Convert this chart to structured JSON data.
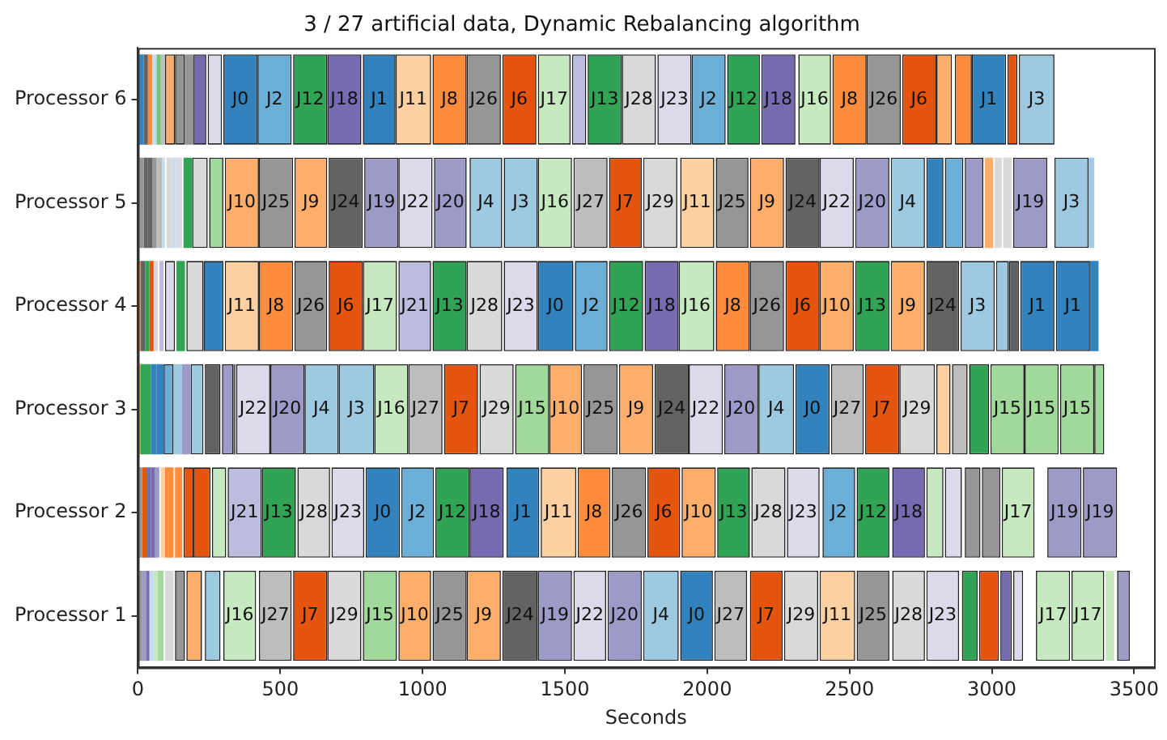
{
  "chart_data": {
    "type": "bar",
    "orientation": "horizontal",
    "title": "3 / 27 artificial data, Dynamic Rebalancing algorithm",
    "xlabel": "Seconds",
    "categories": [
      "Processor 6",
      "Processor 5",
      "Processor 4",
      "Processor 3",
      "Processor 2",
      "Processor 1"
    ],
    "xlim": [
      0,
      3570
    ],
    "xticks": [
      0,
      500,
      1000,
      1500,
      2000,
      2500,
      3000,
      3500
    ],
    "grid": false,
    "legend": false,
    "series": [
      {
        "base": [
          5,
          5,
          5,
          5,
          5,
          5
        ],
        "values": [
          15,
          15,
          5,
          5,
          10,
          10
        ],
        "colors": [
          "#3182bd",
          "#969696",
          "#fd8d3c",
          "#fd8d3c",
          "#969696",
          "#969696"
        ]
      },
      {
        "base": [
          20,
          20,
          10,
          10,
          15,
          15
        ],
        "values": [
          15,
          15,
          15,
          20,
          15,
          15
        ],
        "colors": [
          "#636363",
          "#636363",
          "#636363",
          "#31a354",
          "#e6550d",
          "#9e9ac8"
        ]
      },
      {
        "base": [
          35,
          35,
          25,
          30,
          30,
          30
        ],
        "values": [
          15,
          15,
          15,
          15,
          15,
          10
        ],
        "colors": [
          "#fd8d3c",
          "#636363",
          "#31a354",
          "#31a354",
          "#756bb1",
          "#756bb1"
        ]
      },
      {
        "base": [
          50,
          50,
          40,
          45,
          45,
          40
        ],
        "values": [
          15,
          15,
          15,
          20,
          15,
          15
        ],
        "colors": [
          "#c6dbef",
          "#969696",
          "#e6550d",
          "#3182bd",
          "#756bb1",
          "#c6dbef"
        ]
      },
      {
        "base": [
          65,
          65,
          55,
          65,
          60,
          55
        ],
        "values": [
          15,
          20,
          15,
          25,
          15,
          15
        ],
        "colors": [
          "#74c476",
          "#bdbdbd",
          "#d9d9d9",
          "#3182bd",
          "#9e9ac8",
          "#c7e9c0"
        ]
      },
      {
        "base": [
          80,
          85,
          75,
          90,
          80,
          70
        ],
        "values": [
          15,
          10,
          15,
          35,
          15,
          20
        ],
        "colors": [
          "#bdbdbd",
          "#c6dbef",
          "#bcbddc",
          "#6baed6",
          "#fdd0a2",
          "#a1d99b"
        ]
      },
      {
        "base": [
          95,
          100,
          95,
          125,
          95,
          95
        ],
        "values": [
          35,
          20,
          35,
          30,
          30,
          30
        ],
        "colors": [
          "#fdae6b",
          "#d9d9d9",
          "#dadaeb",
          "#9ecae1",
          "#fd8d3c",
          "#d9d9d9"
        ]
      },
      {
        "base": [
          130,
          120,
          135,
          155,
          130,
          130
        ],
        "values": [
          35,
          10,
          30,
          30,
          25,
          35
        ],
        "colors": [
          "#969696",
          "#c6dbef",
          "#31a354",
          "#9e9ac8",
          "#fd8d3c",
          "#969696"
        ]
      },
      {
        "base": [
          165,
          130,
          170,
          185,
          160,
          170
        ],
        "values": [
          30,
          25,
          60,
          45,
          35,
          55
        ],
        "colors": [
          "#969696",
          "#dadaeb",
          "#d9d9d9",
          "#9ecae1",
          "#e6550d",
          "#fdae6b"
        ]
      },
      {
        "base": [
          195,
          160,
          230,
          235,
          195,
          235
        ],
        "values": [
          45,
          30,
          70,
          55,
          60,
          55
        ],
        "colors": [
          "#756bb1",
          "#31a354",
          "#3182bd",
          "#636363",
          "#e6550d",
          "#9ecae1"
        ]
      },
      {
        "base": [
          245,
          190,
          305,
          295,
          260,
          300
        ],
        "values": [
          50,
          55,
          120,
          40,
          50,
          115
        ],
        "colors": [
          "#dadaeb",
          "#d9d9d9",
          "#fdd0a2",
          "#9e9ac8",
          "#c7e9c0",
          "#c7e9c0"
        ],
        "value_labels": [
          null,
          null,
          "J11",
          null,
          null,
          "J16"
        ]
      },
      {
        "base": [
          300,
          250,
          425,
          335,
          315,
          425
        ],
        "values": [
          120,
          50,
          120,
          8,
          120,
          115
        ],
        "colors": [
          "#3182bd",
          "#a1d99b",
          "#fd8d3c",
          "#636363",
          "#bcbddc",
          "#bdbdbd"
        ],
        "value_labels": [
          "J0",
          null,
          "J8",
          null,
          "J21",
          "J27"
        ]
      },
      {
        "base": [
          420,
          305,
          550,
          345,
          435,
          545
        ],
        "values": [
          120,
          120,
          115,
          120,
          120,
          120
        ],
        "colors": [
          "#6baed6",
          "#fdae6b",
          "#969696",
          "#dadaeb",
          "#31a354",
          "#e6550d"
        ],
        "value_labels": [
          "J2",
          "J10",
          "J26",
          "J22",
          "J13",
          "J7"
        ]
      },
      {
        "base": [
          545,
          425,
          670,
          465,
          560,
          665
        ],
        "values": [
          120,
          120,
          120,
          120,
          115,
          120
        ],
        "colors": [
          "#31a354",
          "#969696",
          "#e6550d",
          "#9e9ac8",
          "#d9d9d9",
          "#d9d9d9"
        ],
        "value_labels": [
          "J12",
          "J25",
          "J6",
          "J20",
          "J28",
          "J29"
        ]
      },
      {
        "base": [
          665,
          550,
          790,
          585,
          680,
          790
        ],
        "values": [
          120,
          115,
          120,
          120,
          115,
          120
        ],
        "colors": [
          "#756bb1",
          "#fdae6b",
          "#c7e9c0",
          "#9ecae1",
          "#dadaeb",
          "#a1d99b"
        ],
        "value_labels": [
          "J18",
          "J9",
          "J17",
          "J4",
          "J23",
          "J15"
        ]
      },
      {
        "base": [
          790,
          670,
          915,
          705,
          800,
          915
        ],
        "values": [
          115,
          120,
          115,
          125,
          120,
          115
        ],
        "colors": [
          "#3182bd",
          "#636363",
          "#bcbddc",
          "#9ecae1",
          "#3182bd",
          "#fdae6b"
        ],
        "value_labels": [
          "J1",
          "J24",
          "J21",
          "J3",
          "J0",
          "J10"
        ]
      },
      {
        "base": [
          905,
          795,
          1035,
          830,
          925,
          1035
        ],
        "values": [
          125,
          120,
          120,
          120,
          115,
          120
        ],
        "colors": [
          "#fdd0a2",
          "#9e9ac8",
          "#31a354",
          "#c7e9c0",
          "#6baed6",
          "#969696"
        ],
        "value_labels": [
          "J11",
          "J19",
          "J13",
          "J16",
          "J2",
          "J25"
        ]
      },
      {
        "base": [
          1035,
          915,
          1155,
          950,
          1045,
          1155
        ],
        "values": [
          120,
          120,
          125,
          120,
          120,
          120
        ],
        "colors": [
          "#fd8d3c",
          "#dadaeb",
          "#d9d9d9",
          "#bdbdbd",
          "#31a354",
          "#fdae6b"
        ],
        "value_labels": [
          "J8",
          "J22",
          "J28",
          "J27",
          "J12",
          "J9"
        ]
      },
      {
        "base": [
          1155,
          1040,
          1285,
          1075,
          1165,
          1280
        ],
        "values": [
          120,
          115,
          120,
          120,
          120,
          125
        ],
        "colors": [
          "#969696",
          "#9e9ac8",
          "#dadaeb",
          "#e6550d",
          "#756bb1",
          "#636363"
        ],
        "value_labels": [
          "J26",
          "J20",
          "J23",
          "J7",
          "J18",
          "J24"
        ]
      },
      {
        "base": [
          1280,
          1165,
          1405,
          1200,
          1295,
          1405
        ],
        "values": [
          120,
          115,
          125,
          120,
          115,
          120
        ],
        "colors": [
          "#e6550d",
          "#9ecae1",
          "#3182bd",
          "#d9d9d9",
          "#3182bd",
          "#9e9ac8"
        ],
        "value_labels": [
          "J6",
          "J4",
          "J0",
          "J29",
          "J1",
          "J19"
        ]
      },
      {
        "base": [
          1405,
          1285,
          1535,
          1325,
          1415,
          1530
        ],
        "values": [
          115,
          120,
          115,
          120,
          125,
          115
        ],
        "colors": [
          "#c7e9c0",
          "#9ecae1",
          "#6baed6",
          "#a1d99b",
          "#fdd0a2",
          "#dadaeb"
        ],
        "value_labels": [
          "J17",
          "J3",
          "J2",
          "J15",
          "J11",
          "J22"
        ]
      },
      {
        "base": [
          1525,
          1405,
          1655,
          1445,
          1545,
          1650
        ],
        "values": [
          50,
          120,
          120,
          115,
          115,
          120
        ],
        "colors": [
          "#bcbddc",
          "#c7e9c0",
          "#31a354",
          "#fdae6b",
          "#fd8d3c",
          "#9e9ac8"
        ],
        "value_labels": [
          null,
          "J16",
          "J12",
          "J10",
          "J8",
          "J20"
        ]
      },
      {
        "base": [
          1580,
          1530,
          1780,
          1565,
          1665,
          1775
        ],
        "values": [
          120,
          120,
          120,
          120,
          120,
          125
        ],
        "colors": [
          "#31a354",
          "#bdbdbd",
          "#756bb1",
          "#969696",
          "#969696",
          "#9ecae1"
        ],
        "value_labels": [
          "J13",
          "J27",
          "J18",
          "J25",
          "J26",
          "J4"
        ]
      },
      {
        "base": [
          1700,
          1655,
          1900,
          1690,
          1790,
          1905
        ],
        "values": [
          120,
          115,
          125,
          120,
          115,
          115
        ],
        "colors": [
          "#d9d9d9",
          "#e6550d",
          "#c7e9c0",
          "#fdae6b",
          "#e6550d",
          "#3182bd"
        ],
        "value_labels": [
          "J28",
          "J7",
          "J16",
          "J9",
          "J6",
          "J0"
        ]
      },
      {
        "base": [
          1825,
          1775,
          2030,
          1815,
          1910,
          2025
        ],
        "values": [
          120,
          120,
          120,
          120,
          120,
          115
        ],
        "colors": [
          "#dadaeb",
          "#d9d9d9",
          "#fd8d3c",
          "#636363",
          "#fdae6b",
          "#bdbdbd"
        ],
        "value_labels": [
          "J23",
          "J29",
          "J8",
          "J24",
          "J10",
          "J27"
        ]
      },
      {
        "base": [
          1945,
          1905,
          2150,
          1935,
          2035,
          2150
        ],
        "values": [
          120,
          120,
          120,
          120,
          115,
          115
        ],
        "colors": [
          "#6baed6",
          "#fdd0a2",
          "#969696",
          "#dadaeb",
          "#31a354",
          "#e6550d"
        ],
        "value_labels": [
          "J2",
          "J11",
          "J26",
          "J22",
          "J13",
          "J7"
        ]
      },
      {
        "base": [
          2070,
          2030,
          2275,
          2060,
          2155,
          2270
        ],
        "values": [
          115,
          115,
          120,
          120,
          120,
          120
        ],
        "colors": [
          "#31a354",
          "#969696",
          "#e6550d",
          "#9e9ac8",
          "#d9d9d9",
          "#d9d9d9"
        ],
        "value_labels": [
          "J12",
          "J25",
          "J6",
          "J20",
          "J28",
          "J29"
        ]
      },
      {
        "base": [
          2190,
          2150,
          2395,
          2180,
          2280,
          2395
        ],
        "values": [
          120,
          120,
          120,
          125,
          115,
          125
        ],
        "colors": [
          "#756bb1",
          "#fdae6b",
          "#fdae6b",
          "#9ecae1",
          "#dadaeb",
          "#fdd0a2"
        ],
        "value_labels": [
          "J18",
          "J9",
          "J10",
          "J4",
          "J23",
          "J11"
        ]
      },
      {
        "base": [
          2320,
          2275,
          2520,
          2310,
          2405,
          2525
        ],
        "values": [
          115,
          120,
          120,
          120,
          115,
          115
        ],
        "colors": [
          "#c7e9c0",
          "#636363",
          "#31a354",
          "#3182bd",
          "#6baed6",
          "#969696"
        ],
        "value_labels": [
          "J16",
          "J24",
          "J13",
          "J0",
          "J2",
          "J25"
        ]
      },
      {
        "base": [
          2440,
          2395,
          2645,
          2435,
          2525,
          2650
        ],
        "values": [
          120,
          120,
          120,
          115,
          115,
          115
        ],
        "colors": [
          "#fd8d3c",
          "#dadaeb",
          "#fdae6b",
          "#bdbdbd",
          "#31a354",
          "#d9d9d9"
        ],
        "value_labels": [
          "J8",
          "J22",
          "J9",
          "J27",
          "J12",
          "J28"
        ]
      },
      {
        "base": [
          2560,
          2520,
          2770,
          2555,
          2650,
          2770
        ],
        "values": [
          120,
          120,
          115,
          120,
          115,
          115
        ],
        "colors": [
          "#969696",
          "#9e9ac8",
          "#636363",
          "#e6550d",
          "#756bb1",
          "#dadaeb"
        ],
        "value_labels": [
          "J26",
          "J20",
          "J24",
          "J7",
          "J18",
          "J23"
        ]
      },
      {
        "base": [
          2685,
          2645,
          2890,
          2675,
          2770,
          2895
        ],
        "values": [
          120,
          120,
          120,
          125,
          60,
          55
        ],
        "colors": [
          "#e6550d",
          "#9ecae1",
          "#9ecae1",
          "#d9d9d9",
          "#c7e9c0",
          "#31a354"
        ],
        "value_labels": [
          "J6",
          "J4",
          "J3",
          "J29",
          null,
          null
        ]
      },
      {
        "base": [
          2805,
          2770,
          3015,
          2805,
          2835,
          2955
        ],
        "values": [
          55,
          60,
          45,
          50,
          60,
          70
        ],
        "colors": [
          "#fdae6b",
          "#3182bd",
          "#9ecae1",
          "#fdd0a2",
          "#dadaeb",
          "#e6550d"
        ]
      },
      {
        "base": [
          2870,
          2835,
          3060,
          2860,
          2905,
          3030
        ],
        "values": [
          60,
          65,
          35,
          55,
          55,
          40
        ],
        "colors": [
          "#fd8d3c",
          "#6baed6",
          "#636363",
          "#bdbdbd",
          "#969696",
          "#756bb1"
        ]
      },
      {
        "base": [
          2930,
          2905,
          3100,
          2920,
          2965,
          3075
        ],
        "values": [
          120,
          65,
          120,
          70,
          65,
          35
        ],
        "colors": [
          "#3182bd",
          "#9e9ac8",
          "#3182bd",
          "#31a354",
          "#969696",
          "#dadaeb"
        ],
        "value_labels": [
          "J1",
          null,
          "J1",
          null,
          null,
          null
        ]
      },
      {
        "base": [
          3055,
          2975,
          3225,
          2995,
          3035,
          3155
        ],
        "values": [
          35,
          30,
          120,
          120,
          115,
          120
        ],
        "colors": [
          "#e6550d",
          "#fdae6b",
          "#3182bd",
          "#a1d99b",
          "#c7e9c0",
          "#c7e9c0"
        ],
        "value_labels": [
          null,
          null,
          "J1",
          "J15",
          "J17",
          "J17"
        ]
      },
      {
        "base": [
          3095,
          3010,
          3345,
          3115,
          3195,
          3280
        ],
        "values": [
          125,
          25,
          30,
          120,
          120,
          115
        ],
        "colors": [
          "#9ecae1",
          "#d9d9d9",
          "#3182bd",
          "#a1d99b",
          "#9e9ac8",
          "#c7e9c0"
        ],
        "value_labels": [
          "J3",
          null,
          null,
          "J15",
          "J19",
          "J17"
        ]
      },
      {
        "base": [
          null,
          3040,
          null,
          3240,
          3320,
          3400
        ],
        "values": [
          null,
          30,
          null,
          120,
          120,
          30
        ],
        "colors": [
          null,
          "#d9d9d9",
          null,
          "#a1d99b",
          "#9e9ac8",
          "#c7e9c0"
        ],
        "value_labels": [
          null,
          null,
          null,
          "J15",
          "J19",
          null
        ]
      },
      {
        "base": [
          null,
          3075,
          null,
          3360,
          null,
          3440
        ],
        "values": [
          null,
          120,
          null,
          35,
          null,
          45
        ],
        "colors": [
          null,
          "#9e9ac8",
          null,
          "#a1d99b",
          null,
          "#9e9ac8"
        ],
        "value_labels": [
          null,
          "J19",
          null,
          null,
          null,
          null
        ]
      },
      {
        "base": [
          null,
          3220,
          null,
          null,
          null,
          null
        ],
        "values": [
          null,
          120,
          null,
          null,
          null,
          null
        ],
        "colors": [
          null,
          "#9ecae1",
          null,
          null,
          null,
          null
        ],
        "value_labels": [
          null,
          "J3",
          null,
          null,
          null,
          null
        ]
      },
      {
        "base": [
          null,
          3340,
          null,
          null,
          null,
          null
        ],
        "values": [
          null,
          20,
          null,
          null,
          null,
          null
        ],
        "colors": [
          null,
          "#9ecae1",
          null,
          null,
          null,
          null
        ]
      }
    ]
  }
}
